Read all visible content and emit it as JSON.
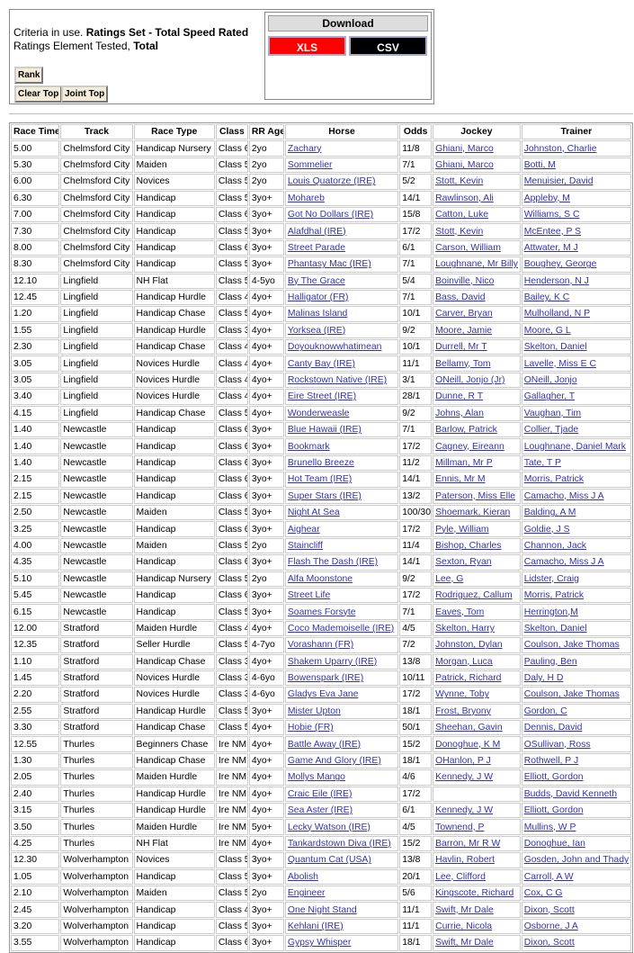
{
  "criteria": {
    "prefix": "Criteria in use.",
    "set": "Ratings Set - Total Speed Rated",
    "element_prefix": "Ratings Element Tested,",
    "element": "Total"
  },
  "buttons": {
    "rank": "Rank",
    "clear_top": "Clear Top",
    "joint_top": "Joint Top"
  },
  "download": {
    "title": "Download",
    "xls": "XLS",
    "csv": "CSV"
  },
  "table": {
    "headers": [
      "Race Time",
      "Track",
      "Race Type",
      "Class",
      "RR Age",
      "Horse",
      "Odds",
      "Jockey",
      "Trainer"
    ],
    "rows": [
      [
        "5.00",
        "Chelmsford City",
        "Handicap Nursery",
        "Class 6",
        "2yo",
        "Zachary",
        "11/8",
        "Ghiani, Marco",
        "Johnston, Charlie"
      ],
      [
        "5.30",
        "Chelmsford City",
        "Maiden",
        "Class 5",
        "2yo",
        "Sommelier",
        "7/1",
        "Ghiani, Marco",
        "Botti, M"
      ],
      [
        "6.00",
        "Chelmsford City",
        "Novices",
        "Class 5",
        "2yo",
        "Louis Quatorze (IRE)",
        "5/2",
        "Stott, Kevin",
        "Menuisier, David"
      ],
      [
        "6.30",
        "Chelmsford City",
        "Handicap",
        "Class 5",
        "3yo+",
        "Mohareb",
        "14/1",
        "Rawlinson, Ali",
        "Appleby, M"
      ],
      [
        "7.00",
        "Chelmsford City",
        "Handicap",
        "Class 6",
        "3yo+",
        "Got No Dollars (IRE)",
        "15/8",
        "Catton, Luke",
        "Williams, S C"
      ],
      [
        "7.30",
        "Chelmsford City",
        "Handicap",
        "Class 5",
        "3yo+",
        "Alafdhal (IRE)",
        "17/2",
        "Stott, Kevin",
        "McEntee, P S"
      ],
      [
        "8.00",
        "Chelmsford City",
        "Handicap",
        "Class 6",
        "3yo+",
        "Street Parade",
        "6/1",
        "Carson, William",
        "Attwater, M J"
      ],
      [
        "8.30",
        "Chelmsford City",
        "Handicap",
        "Class 5",
        "3yo+",
        "Phantasy Mac (IRE)",
        "7/1",
        "Loughnane, Mr Billy",
        "Boughey, George"
      ],
      [
        "12.10",
        "Lingfield",
        "NH Flat",
        "Class 5",
        "4-5yo",
        "By The Grace",
        "5/4",
        "Boinville, Nico",
        "Henderson, N J"
      ],
      [
        "12.45",
        "Lingfield",
        "Handicap Hurdle",
        "Class 4",
        "4yo+",
        "Halligator (FR)",
        "7/1",
        "Bass, David",
        "Bailey, K C"
      ],
      [
        "1.20",
        "Lingfield",
        "Handicap Chase",
        "Class 5",
        "4yo+",
        "Malinas Island",
        "10/1",
        "Carver, Bryan",
        "Mulholland, N P"
      ],
      [
        "1.55",
        "Lingfield",
        "Handicap Hurdle",
        "Class 3",
        "4yo+",
        "Yorksea (IRE)",
        "9/2",
        "Moore, Jamie",
        "Moore, G L"
      ],
      [
        "2.30",
        "Lingfield",
        "Handicap Chase",
        "Class 4",
        "4yo+",
        "Doyouknowwhatimean",
        "10/1",
        "Durrell, Mr T",
        "Skelton, Daniel"
      ],
      [
        "3.05",
        "Lingfield",
        "Novices Hurdle",
        "Class 4",
        "4yo+",
        "Canty Bay (IRE)",
        "11/1",
        "Bellamy, Tom",
        "Lavelle, Miss E C"
      ],
      [
        "3.05",
        "Lingfield",
        "Novices Hurdle",
        "Class 4",
        "4yo+",
        "Rockstown Native (IRE)",
        "3/1",
        "ONeill, Jonjo (Jr)",
        "ONeill, Jonjo"
      ],
      [
        "3.40",
        "Lingfield",
        "Novices Hurdle",
        "Class 4",
        "4yo+",
        "Eire Street (IRE)",
        "28/1",
        "Dunne, R T",
        "Gallagher, T"
      ],
      [
        "4.15",
        "Lingfield",
        "Handicap Chase",
        "Class 5",
        "4yo+",
        "Wonderweasle",
        "9/2",
        "Johns, Alan",
        "Vaughan, Tim"
      ],
      [
        "1.40",
        "Newcastle",
        "Handicap",
        "Class 6",
        "3yo+",
        "Blue Hawaii (IRE)",
        "7/1",
        "Barlow, Patrick",
        "Collier, Tjade"
      ],
      [
        "1.40",
        "Newcastle",
        "Handicap",
        "Class 6",
        "3yo+",
        "Bookmark",
        "17/2",
        "Cagney, Eireann",
        "Loughnane, Daniel Mark"
      ],
      [
        "1.40",
        "Newcastle",
        "Handicap",
        "Class 6",
        "3yo+",
        "Brunello Breeze",
        "11/2",
        "Millman, Mr P",
        "Tate, T P"
      ],
      [
        "2.15",
        "Newcastle",
        "Handicap",
        "Class 6",
        "3yo+",
        "Hot Team (IRE)",
        "14/1",
        "Ennis, Mr M",
        "Morris, Patrick"
      ],
      [
        "2.15",
        "Newcastle",
        "Handicap",
        "Class 6",
        "3yo+",
        "Super Stars (IRE)",
        "13/2",
        "Paterson, Miss Elle",
        "Camacho, Miss J A"
      ],
      [
        "2.50",
        "Newcastle",
        "Maiden",
        "Class 5",
        "3yo+",
        "Night At Sea",
        "100/30",
        "Shoemark, Kieran",
        "Balding, A M"
      ],
      [
        "3.25",
        "Newcastle",
        "Handicap",
        "Class 6",
        "3yo+",
        "Aighear",
        "17/2",
        "Pyle, William",
        "Goldie, J S"
      ],
      [
        "4.00",
        "Newcastle",
        "Maiden",
        "Class 5",
        "2yo",
        "Staincliff",
        "11/4",
        "Bishop, Charles",
        "Channon, Jack"
      ],
      [
        "4.35",
        "Newcastle",
        "Handicap",
        "Class 6",
        "3yo+",
        "Flash The Dash (IRE)",
        "14/1",
        "Sexton, Ryan",
        "Camacho, Miss J A"
      ],
      [
        "5.10",
        "Newcastle",
        "Handicap Nursery",
        "Class 5",
        "2yo",
        "Alfa Moonstone",
        "9/2",
        "Lee, G",
        "Lidster, Craig"
      ],
      [
        "5.45",
        "Newcastle",
        "Handicap",
        "Class 6",
        "3yo+",
        "Street Life",
        "17/2",
        "Rodriguez, Callum",
        "Morris, Patrick"
      ],
      [
        "6.15",
        "Newcastle",
        "Handicap",
        "Class 5",
        "3yo+",
        "Soames Forsyte",
        "7/1",
        "Eaves, Tom",
        "Herrington,M"
      ],
      [
        "12.00",
        "Stratford",
        "Maiden Hurdle",
        "Class 4",
        "4yo+",
        "Coco Mademoiselle (IRE)",
        "4/5",
        "Skelton, Harry",
        "Skelton, Daniel"
      ],
      [
        "12.35",
        "Stratford",
        "Seller Hurdle",
        "Class 5",
        "4-7yo",
        "Vorashann (FR)",
        "7/2",
        "Johnston, Dylan",
        "Coulson, Jake Thomas"
      ],
      [
        "1.10",
        "Stratford",
        "Handicap Chase",
        "Class 3",
        "4yo+",
        "Shakem Uparry (IRE)",
        "13/8",
        "Morgan, Luca",
        "Pauling, Ben"
      ],
      [
        "1.45",
        "Stratford",
        "Novices Hurdle",
        "Class 3",
        "4-6yo",
        "Bowenspark (IRE)",
        "10/11",
        "Patrick, Richard",
        "Daly, H D"
      ],
      [
        "2.20",
        "Stratford",
        "Novices Hurdle",
        "Class 3",
        "4-6yo",
        "Gladys Eva Jane",
        "17/2",
        "Wynne, Toby",
        "Coulson, Jake Thomas"
      ],
      [
        "2.55",
        "Stratford",
        "Handicap Hurdle",
        "Class 5",
        "3yo+",
        "Mister Upton",
        "18/1",
        "Frost, Bryony",
        "Gordon, C"
      ],
      [
        "3.30",
        "Stratford",
        "Handicap Chase",
        "Class 5",
        "4yo+",
        "Hobie (FR)",
        "50/1",
        "Sheehan, Gavin",
        "Dennis, David"
      ],
      [
        "12.55",
        "Thurles",
        "Beginners Chase",
        "Ire NM",
        "4yo+",
        "Battle Away (IRE)",
        "15/2",
        "Donoghue, K M",
        "OSullivan, Ross"
      ],
      [
        "1.30",
        "Thurles",
        "Handicap Chase",
        "Ire NM",
        "4yo+",
        "Game And Glory (IRE)",
        "18/1",
        "OHanlon, P J",
        "Rothwell, P J"
      ],
      [
        "2.05",
        "Thurles",
        "Maiden Hurdle",
        "Ire NM",
        "4yo+",
        "Mollys Mango",
        "4/6",
        "Kennedy, J W",
        "Elliott, Gordon"
      ],
      [
        "2.40",
        "Thurles",
        "Handicap Hurdle",
        "Ire NM",
        "4yo+",
        "Craic Eile (IRE)",
        "17/2",
        null,
        "Budds, David Kenneth"
      ],
      [
        "3.15",
        "Thurles",
        "Handicap Hurdle",
        "Ire NM",
        "4yo+",
        "Sea Aster (IRE)",
        "6/1",
        "Kennedy, J W",
        "Elliott, Gordon"
      ],
      [
        "3.50",
        "Thurles",
        "Maiden Hurdle",
        "Ire NM",
        "5yo+",
        "Lecky Watson (IRE)",
        "4/5",
        "Townend, P",
        "Mullins, W P"
      ],
      [
        "4.25",
        "Thurles",
        "NH Flat",
        "Ire NM",
        "4yo+",
        "Tankardstown Diva (IRE)",
        "15/2",
        "Barron, Mr R W",
        "Donoghue, Ian"
      ],
      [
        "12.30",
        "Wolverhampton",
        "Novices",
        "Class 5",
        "3yo+",
        "Quantum Cat (USA)",
        "13/8",
        "Havlin, Robert",
        "Gosden, John and Thady"
      ],
      [
        "1.05",
        "Wolverhampton",
        "Handicap",
        "Class 5",
        "3yo+",
        "Abolish",
        "20/1",
        "Lee, Clifford",
        "Carroll, A W"
      ],
      [
        "2.10",
        "Wolverhampton",
        "Maiden",
        "Class 5",
        "2yo",
        "Engineer",
        "5/6",
        "Kingscote, Richard",
        "Cox, C G"
      ],
      [
        "2.45",
        "Wolverhampton",
        "Handicap",
        "Class 4",
        "3yo+",
        "One Night Stand",
        "11/1",
        "Swift, Mr Dale",
        "Dixon, Scott"
      ],
      [
        "3.20",
        "Wolverhampton",
        "Handicap",
        "Class 5",
        "3yo+",
        "Kehlani (IRE)",
        "11/1",
        "Currie, Nicola",
        "Osborne, J A"
      ],
      [
        "3.55",
        "Wolverhampton",
        "Handicap",
        "Class 6",
        "3yo+",
        "Gypsy Whisper",
        "18/1",
        "Swift, Mr Dale",
        "Dixon, Scott"
      ]
    ]
  }
}
